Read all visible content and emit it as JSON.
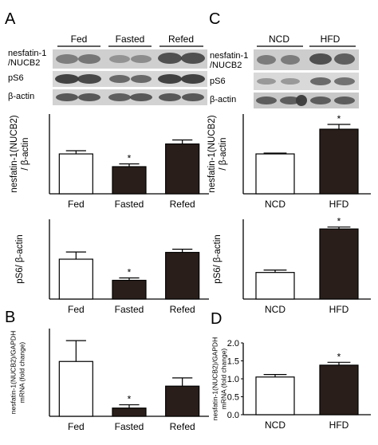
{
  "panels": {
    "A": {
      "letter": "A",
      "groups": [
        "Fed",
        "Fasted",
        "Refed"
      ],
      "blot_labels": [
        "nesfatin-1\n/NUCB2",
        "pS6",
        "β-actin"
      ]
    },
    "C": {
      "letter": "C",
      "groups": [
        "NCD",
        "HFD"
      ],
      "blot_labels": [
        "nesfatin-1\n/NUCB2",
        "pS6",
        "β-actin"
      ]
    },
    "B": {
      "letter": "B"
    },
    "D": {
      "letter": "D"
    }
  },
  "chart_data": [
    {
      "panel": "A-top",
      "type": "bar",
      "categories": [
        "Fed",
        "Fasted",
        "Refed"
      ],
      "values": [
        1.0,
        0.68,
        1.25
      ],
      "errors": [
        0.08,
        0.07,
        0.1
      ],
      "significant": [
        false,
        true,
        false
      ],
      "fills": [
        "#ffffff",
        "#2a1e1a",
        "#2a1e1a"
      ],
      "ylabel": "nesfatin-1(NUCB2)\n/ β-actin",
      "ylim": [
        0,
        2.0
      ]
    },
    {
      "panel": "A-bottom",
      "type": "bar",
      "categories": [
        "Fed",
        "Fasted",
        "Refed"
      ],
      "values": [
        1.0,
        0.47,
        1.17
      ],
      "errors": [
        0.18,
        0.06,
        0.08
      ],
      "significant": [
        false,
        true,
        false
      ],
      "fills": [
        "#ffffff",
        "#2a1e1a",
        "#2a1e1a"
      ],
      "ylabel": "pS6/ β-actin",
      "ylim": [
        0,
        2.0
      ]
    },
    {
      "panel": "C-top",
      "type": "bar",
      "categories": [
        "NCD",
        "HFD"
      ],
      "values": [
        1.0,
        1.62
      ],
      "errors": [
        0.02,
        0.12
      ],
      "significant": [
        false,
        true
      ],
      "fills": [
        "#ffffff",
        "#2a1e1a"
      ],
      "ylabel": "nesfatin-1(NUCB2)\n/ β-actin",
      "ylim": [
        0,
        2.0
      ]
    },
    {
      "panel": "C-bottom",
      "type": "bar",
      "categories": [
        "NCD",
        "HFD"
      ],
      "values": [
        1.1,
        2.9
      ],
      "errors": [
        0.1,
        0.08
      ],
      "significant": [
        false,
        true
      ],
      "fills": [
        "#ffffff",
        "#2a1e1a"
      ],
      "ylabel": "pS6/ β-actin",
      "ylim": [
        0,
        3.3
      ]
    },
    {
      "panel": "B",
      "type": "bar",
      "categories": [
        "Fed",
        "Fasted",
        "Refed"
      ],
      "values": [
        1.0,
        0.15,
        0.55
      ],
      "errors": [
        0.38,
        0.06,
        0.15
      ],
      "significant": [
        false,
        true,
        false
      ],
      "fills": [
        "#ffffff",
        "#2a1e1a",
        "#2a1e1a"
      ],
      "ylabel": "nesfatin-1(NUCB2)/GAPDH\nmRNA (fold change)",
      "ylim": [
        0,
        1.6
      ]
    },
    {
      "panel": "D",
      "type": "bar",
      "categories": [
        "NCD",
        "HFD"
      ],
      "values": [
        1.05,
        1.38
      ],
      "errors": [
        0.07,
        0.08
      ],
      "significant": [
        false,
        true
      ],
      "fills": [
        "#ffffff",
        "#2a1e1a"
      ],
      "ylabel": "nesfatin-1(NUCB2)/GAPDH\nmRNA (fold change)",
      "ylim": [
        0,
        2.0
      ],
      "yticks": [
        "0.0",
        "0.5",
        "1.0",
        "1.5",
        "2.0"
      ]
    }
  ]
}
